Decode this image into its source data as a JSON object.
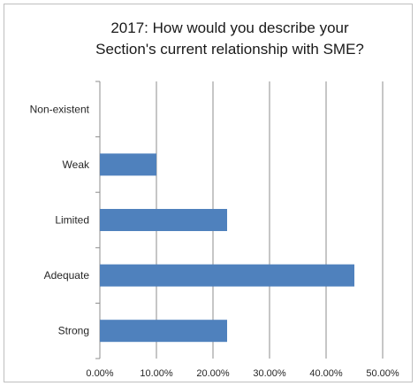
{
  "chart_data": {
    "type": "bar",
    "orientation": "horizontal",
    "title_lines": [
      "2017: How would you describe your",
      "Section's current relationship with SME?"
    ],
    "categories": [
      "Non-existent",
      "Weak",
      "Limited",
      "Adequate",
      "Strong"
    ],
    "values": [
      0.0,
      10.0,
      22.5,
      45.0,
      22.5
    ],
    "value_unit": "%",
    "xlim": [
      0,
      50
    ],
    "x_ticks": [
      "0.00%",
      "10.00%",
      "20.00%",
      "30.00%",
      "40.00%",
      "50.00%"
    ],
    "grid": true,
    "legend": "none",
    "bar_color": "#4f81bd"
  }
}
